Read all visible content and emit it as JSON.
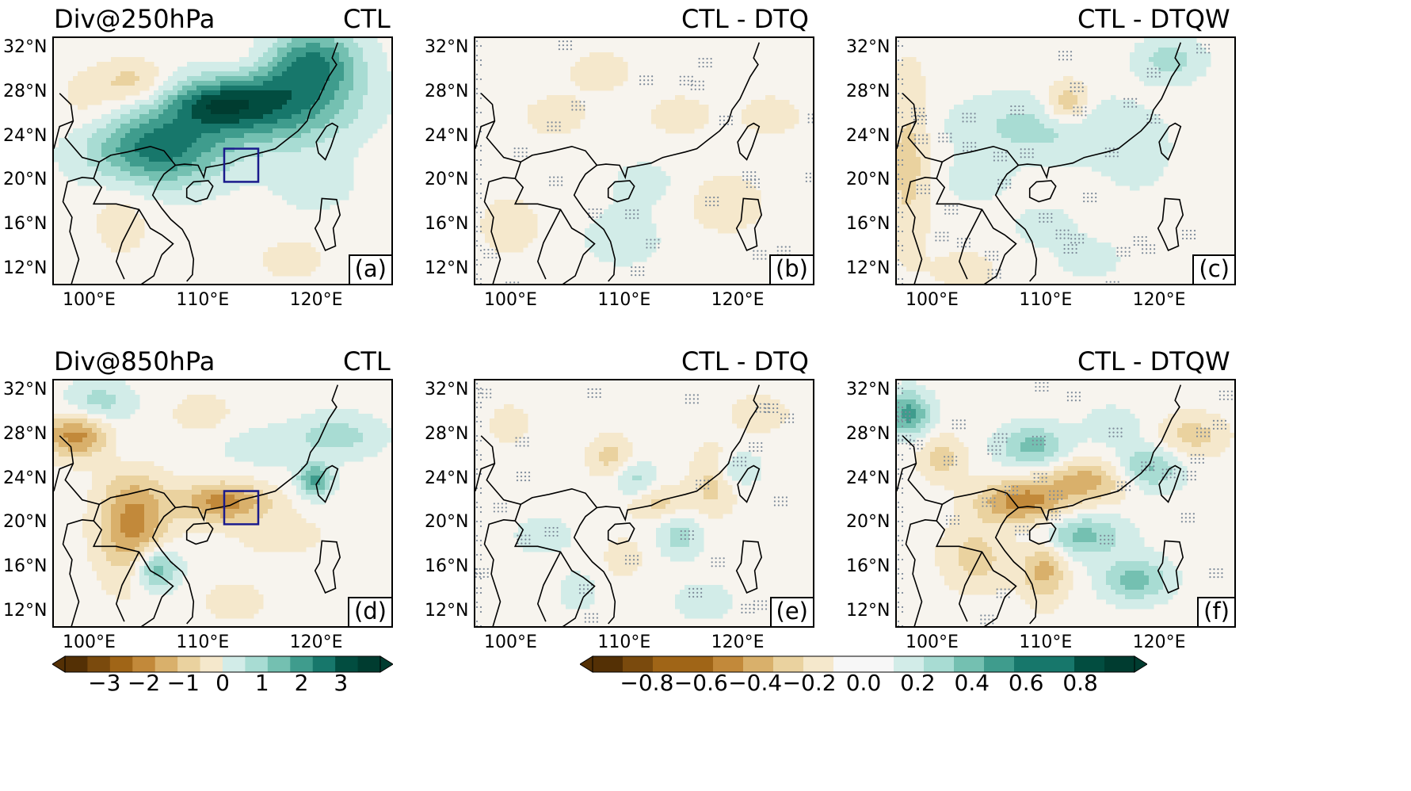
{
  "rows": [
    {
      "title": "Div@250hPa",
      "panels": [
        {
          "label": "CTL",
          "tag": "(a)",
          "field": "ctl250"
        },
        {
          "label": "CTL - DTQ",
          "tag": "(b)",
          "field": "dtq250"
        },
        {
          "label": "CTL - DTQW",
          "tag": "(c)",
          "field": "dtqw250"
        }
      ]
    },
    {
      "title": "Div@850hPa",
      "panels": [
        {
          "label": "CTL",
          "tag": "(d)",
          "field": "ctl850"
        },
        {
          "label": "CTL - DTQ",
          "tag": "(e)",
          "field": "dtq850"
        },
        {
          "label": "CTL - DTQW",
          "tag": "(f)",
          "field": "dtqw850"
        }
      ]
    }
  ],
  "lat_ticks": [
    "32°N",
    "28°N",
    "24°N",
    "20°N",
    "16°N",
    "12°N"
  ],
  "lon_ticks": [
    "100°E",
    "110°E",
    "120°E"
  ],
  "box_color": "#1a1a8c",
  "colorbar_left": {
    "labels": [
      "−3",
      "−2",
      "−1",
      "0",
      "1",
      "2",
      "3"
    ]
  },
  "colorbar_right": {
    "labels": [
      "−0.8",
      "−0.6",
      "−0.4",
      "−0.2",
      "0.0",
      "0.2",
      "0.4",
      "0.6",
      "0.8"
    ]
  },
  "palette": [
    "#543005",
    "#7a4a0d",
    "#a06517",
    "#c2893a",
    "#d9b06b",
    "#ead29f",
    "#f5e8cc",
    "#f7f7f7",
    "#d2ece8",
    "#a8dcd3",
    "#74c0b1",
    "#3f9c8d",
    "#17776b",
    "#024d40",
    "#003c30"
  ]
}
